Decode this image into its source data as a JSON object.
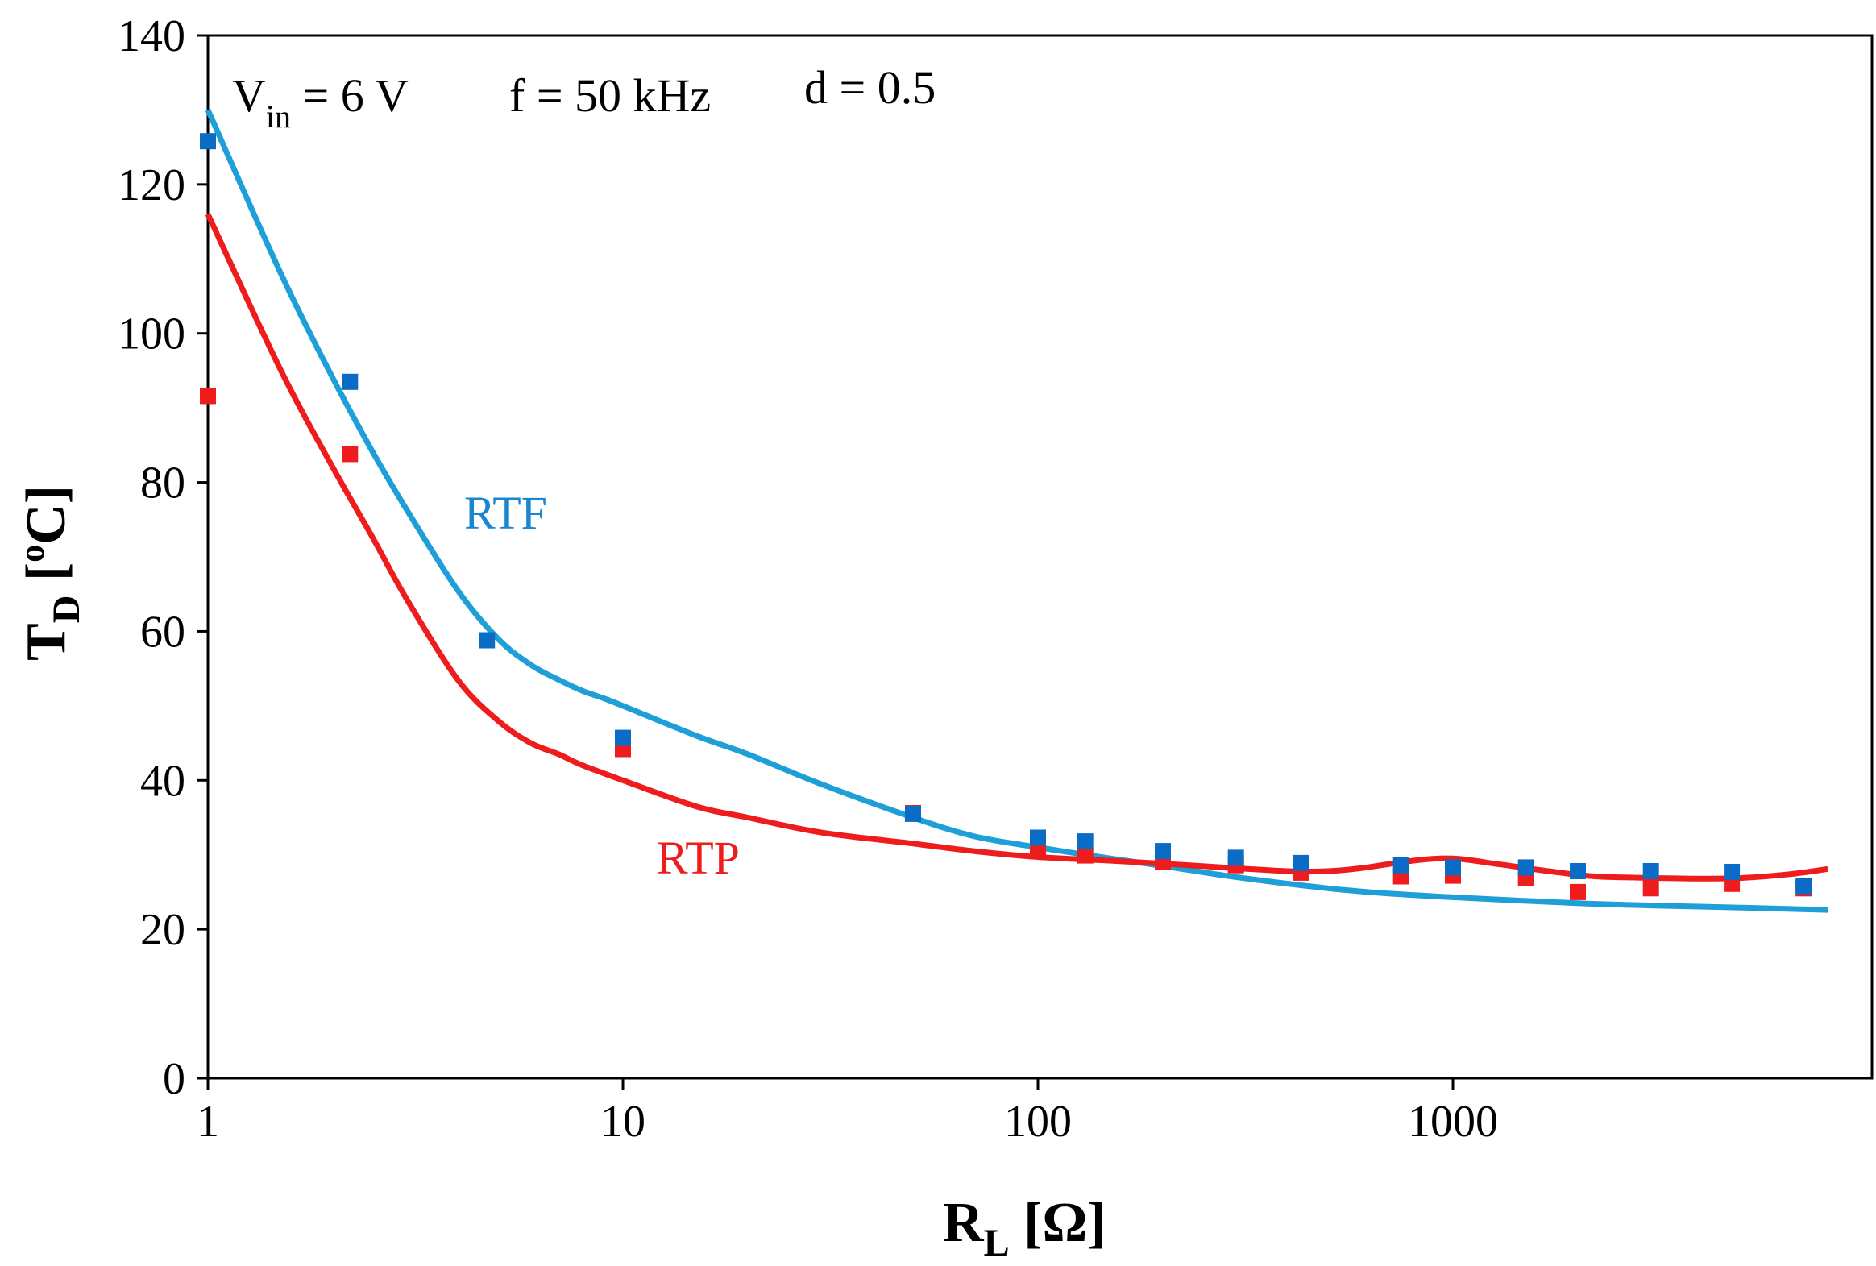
{
  "chart_data": {
    "type": "scatter",
    "title": "",
    "xlabel": {
      "main": "R",
      "sub": "L",
      "unit": " [Ω]"
    },
    "ylabel": {
      "main": "T",
      "sub": "D",
      "unit_open": " [",
      "unit_sup": "o",
      "unit_close": "C]"
    },
    "x_scale": "log",
    "xlim": [
      1,
      8000
    ],
    "ylim": [
      0,
      140
    ],
    "x_ticks": [
      1,
      10,
      100,
      1000
    ],
    "x_tick_labels": [
      "1",
      "10",
      "100",
      "1000"
    ],
    "y_ticks": [
      0,
      20,
      40,
      60,
      80,
      100,
      120,
      140
    ],
    "y_tick_labels": [
      "0",
      "20",
      "40",
      "60",
      "80",
      "100",
      "120",
      "140"
    ],
    "grid": false,
    "annotations": {
      "vin": {
        "main": "V",
        "sub": "in",
        "rest": " = 6 V"
      },
      "freq": "f = 50 kHz",
      "duty": "d = 0.5"
    },
    "series": [
      {
        "name": "RTF",
        "color": "#1f9fd8",
        "marker_color": "#0a6cc4",
        "points_x": [
          1,
          2.2,
          4.7,
          10,
          50,
          100,
          130,
          200,
          300,
          430,
          750,
          1000,
          1500,
          2000,
          3000,
          4700,
          7000
        ],
        "points_y": [
          125.8,
          93.5,
          58.8,
          45.7,
          35.5,
          32.3,
          31.8,
          30.5,
          29.6,
          28.9,
          28.6,
          28.3,
          28.3,
          27.8,
          27.8,
          27.7,
          25.8
        ],
        "curve_x": [
          1,
          1.5,
          2,
          2.5,
          3,
          4,
          5,
          6,
          7,
          8,
          9,
          10,
          15,
          20,
          30,
          50,
          70,
          100,
          150,
          200,
          300,
          500,
          700,
          1000,
          2000,
          3000,
          5000,
          8000
        ],
        "curve_y": [
          130,
          108,
          94,
          84,
          76.5,
          65.5,
          59,
          55.5,
          53.5,
          52,
          51,
          50,
          46,
          43.5,
          39.5,
          35,
          32.5,
          31,
          29.5,
          28.5,
          27,
          25.5,
          24.8,
          24.3,
          23.5,
          23.2,
          22.9,
          22.6
        ]
      },
      {
        "name": "RTP",
        "color": "#ee1c1c",
        "marker_color": "#ee1c1c",
        "points_x": [
          1,
          2.2,
          4.7,
          10,
          50,
          100,
          130,
          200,
          300,
          430,
          750,
          1000,
          1500,
          2000,
          3000,
          4700,
          7000
        ],
        "points_y": [
          91.6,
          83.8,
          58.8,
          44.2,
          35.6,
          30.5,
          29.9,
          29.0,
          28.6,
          27.6,
          27.1,
          27.2,
          26.9,
          25.0,
          25.5,
          26.1,
          25.5
        ],
        "curve_x": [
          1,
          1.5,
          2,
          2.5,
          3,
          4,
          5,
          6,
          7,
          8,
          10,
          15,
          20,
          30,
          50,
          70,
          100,
          150,
          200,
          300,
          400,
          500,
          600,
          800,
          1000,
          1300,
          1700,
          2200,
          3000,
          4000,
          5000,
          6500,
          8000
        ],
        "curve_y": [
          116,
          95,
          82,
          72.5,
          64.5,
          53.5,
          48,
          45,
          43.5,
          42,
          40,
          36.5,
          35,
          33,
          31.5,
          30.5,
          29.7,
          29.2,
          28.8,
          28.2,
          27.8,
          27.8,
          28.2,
          29.2,
          29.5,
          28.7,
          27.8,
          27.1,
          26.9,
          26.8,
          26.9,
          27.4,
          28.1
        ]
      }
    ]
  }
}
